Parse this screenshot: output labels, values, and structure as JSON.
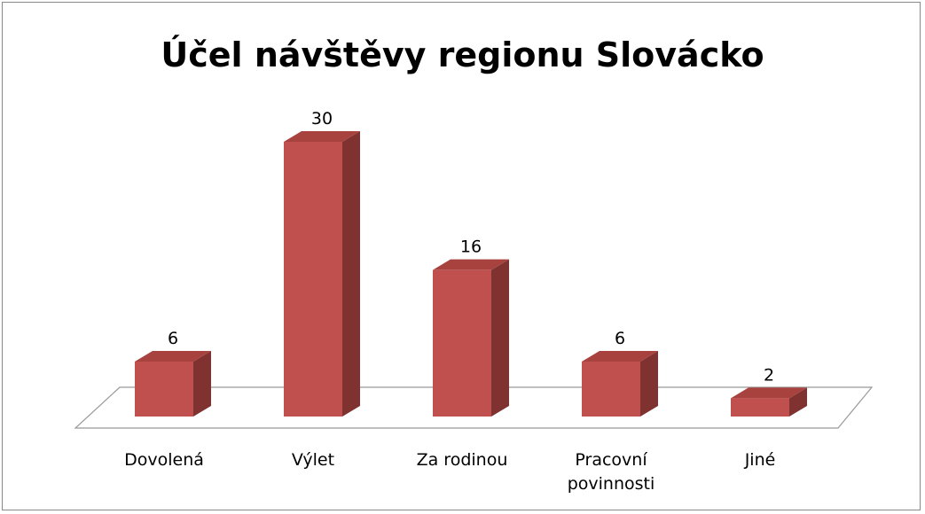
{
  "chart_data": {
    "type": "bar3d",
    "title": "Účel návštěvy regionu Slovácko",
    "categories": [
      "Dovolená",
      "Výlet",
      "Za rodinou",
      "Pracovní povinnosti",
      "Jiné"
    ],
    "values": [
      6,
      30,
      16,
      6,
      2
    ],
    "color": "#c0504d"
  }
}
